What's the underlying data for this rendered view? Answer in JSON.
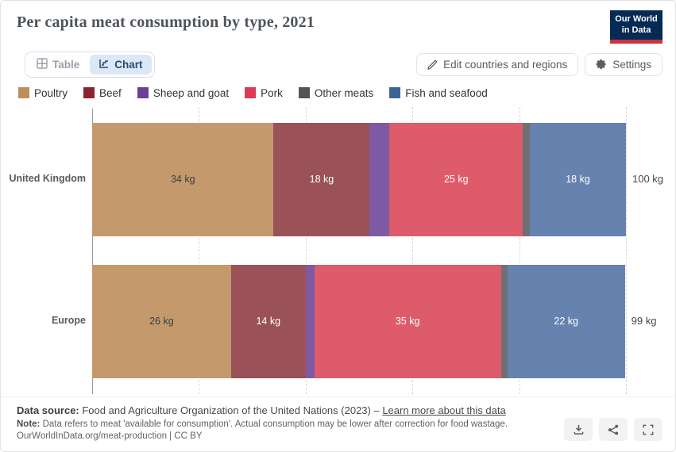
{
  "header": {
    "title": "Per capita meat consumption by type, 2021",
    "logo_line1": "Our World",
    "logo_line2": "in Data"
  },
  "toolbar": {
    "table_tab": "Table",
    "chart_tab": "Chart",
    "edit_button": "Edit countries and regions",
    "settings_button": "Settings"
  },
  "chart_data": {
    "type": "bar",
    "stacked": true,
    "orientation": "horizontal",
    "unit": "kg",
    "xlim": [
      0,
      100
    ],
    "gridlines_kg": [
      20,
      40,
      60,
      80,
      100
    ],
    "grid": "dashed-vertical",
    "categories": [
      "United Kingdom",
      "Europe"
    ],
    "series": [
      {
        "name": "Poultry",
        "values": [
          34,
          26
        ]
      },
      {
        "name": "Beef",
        "values": [
          18,
          14
        ]
      },
      {
        "name": "Sheep and goat",
        "values": [
          3.7,
          1.6
        ]
      },
      {
        "name": "Pork",
        "values": [
          25,
          35
        ]
      },
      {
        "name": "Other meats",
        "values": [
          1.3,
          1.2
        ]
      },
      {
        "name": "Fish and seafood",
        "values": [
          18,
          22
        ]
      }
    ],
    "totals": [
      "100 kg",
      "99 kg"
    ],
    "label_min_kg": 8,
    "legend_colors": {
      "Poultry": "#bc8e5b",
      "Beef": "#8b2332",
      "Sheep and goat": "#6d3e98",
      "Pork": "#da3c55",
      "Other meats": "#50555b",
      "Fish and seafood": "#3c6595"
    },
    "bar_colors": {
      "Poultry": "#c49a6c",
      "Beef": "#9a5157",
      "Sheep and goat": "#7e5aa4",
      "Pork": "#de5b6c",
      "Other meats": "#6f7073",
      "Fish and seafood": "#6682af"
    },
    "dark_text_series": [
      "Poultry"
    ],
    "legend_position": "top"
  },
  "footer": {
    "source_label": "Data source:",
    "source_text": " Food and Agriculture Organization of the United Nations (2023) – ",
    "source_link": "Learn more about this data",
    "note_label": "Note:",
    "note_text": " Data refers to meat 'available for consumption'. Actual consumption may be lower after correction for food wastage.",
    "citation": "OurWorldInData.org/meat-production | CC BY"
  },
  "action_icons": [
    "download",
    "share",
    "fullscreen"
  ]
}
